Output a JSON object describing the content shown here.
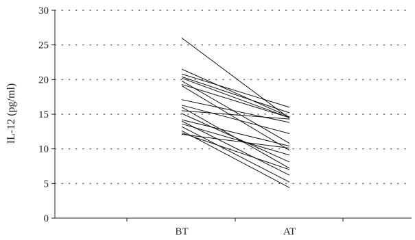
{
  "chart_data": {
    "type": "line",
    "categories": [
      "BT",
      "AT"
    ],
    "ylabel": "IL-12 (pg/ml)",
    "xlabel": "",
    "title": "",
    "ylim": [
      0,
      30
    ],
    "yticks": [
      0,
      5,
      10,
      15,
      20,
      25,
      30
    ],
    "grid": "horizontal dotted",
    "series": [
      {
        "values": [
          26.0,
          14.4
        ]
      },
      {
        "values": [
          21.5,
          14.6
        ]
      },
      {
        "values": [
          20.8,
          16.0
        ]
      },
      {
        "values": [
          20.4,
          15.2
        ]
      },
      {
        "values": [
          20.2,
          14.5
        ]
      },
      {
        "values": [
          19.8,
          10.8
        ]
      },
      {
        "values": [
          19.3,
          14.5
        ]
      },
      {
        "values": [
          19.1,
          9.8
        ]
      },
      {
        "values": [
          17.1,
          13.8
        ]
      },
      {
        "values": [
          16.3,
          12.2
        ]
      },
      {
        "values": [
          16.0,
          7.2
        ]
      },
      {
        "values": [
          15.5,
          14.3
        ]
      },
      {
        "values": [
          15.1,
          8.1
        ]
      },
      {
        "values": [
          14.2,
          10.4
        ]
      },
      {
        "values": [
          14.0,
          6.2
        ]
      },
      {
        "values": [
          13.6,
          9.1
        ]
      },
      {
        "values": [
          13.2,
          5.2
        ]
      },
      {
        "values": [
          12.6,
          4.4
        ]
      },
      {
        "values": [
          12.3,
          7.0
        ]
      },
      {
        "values": [
          12.1,
          10.1
        ]
      }
    ]
  }
}
